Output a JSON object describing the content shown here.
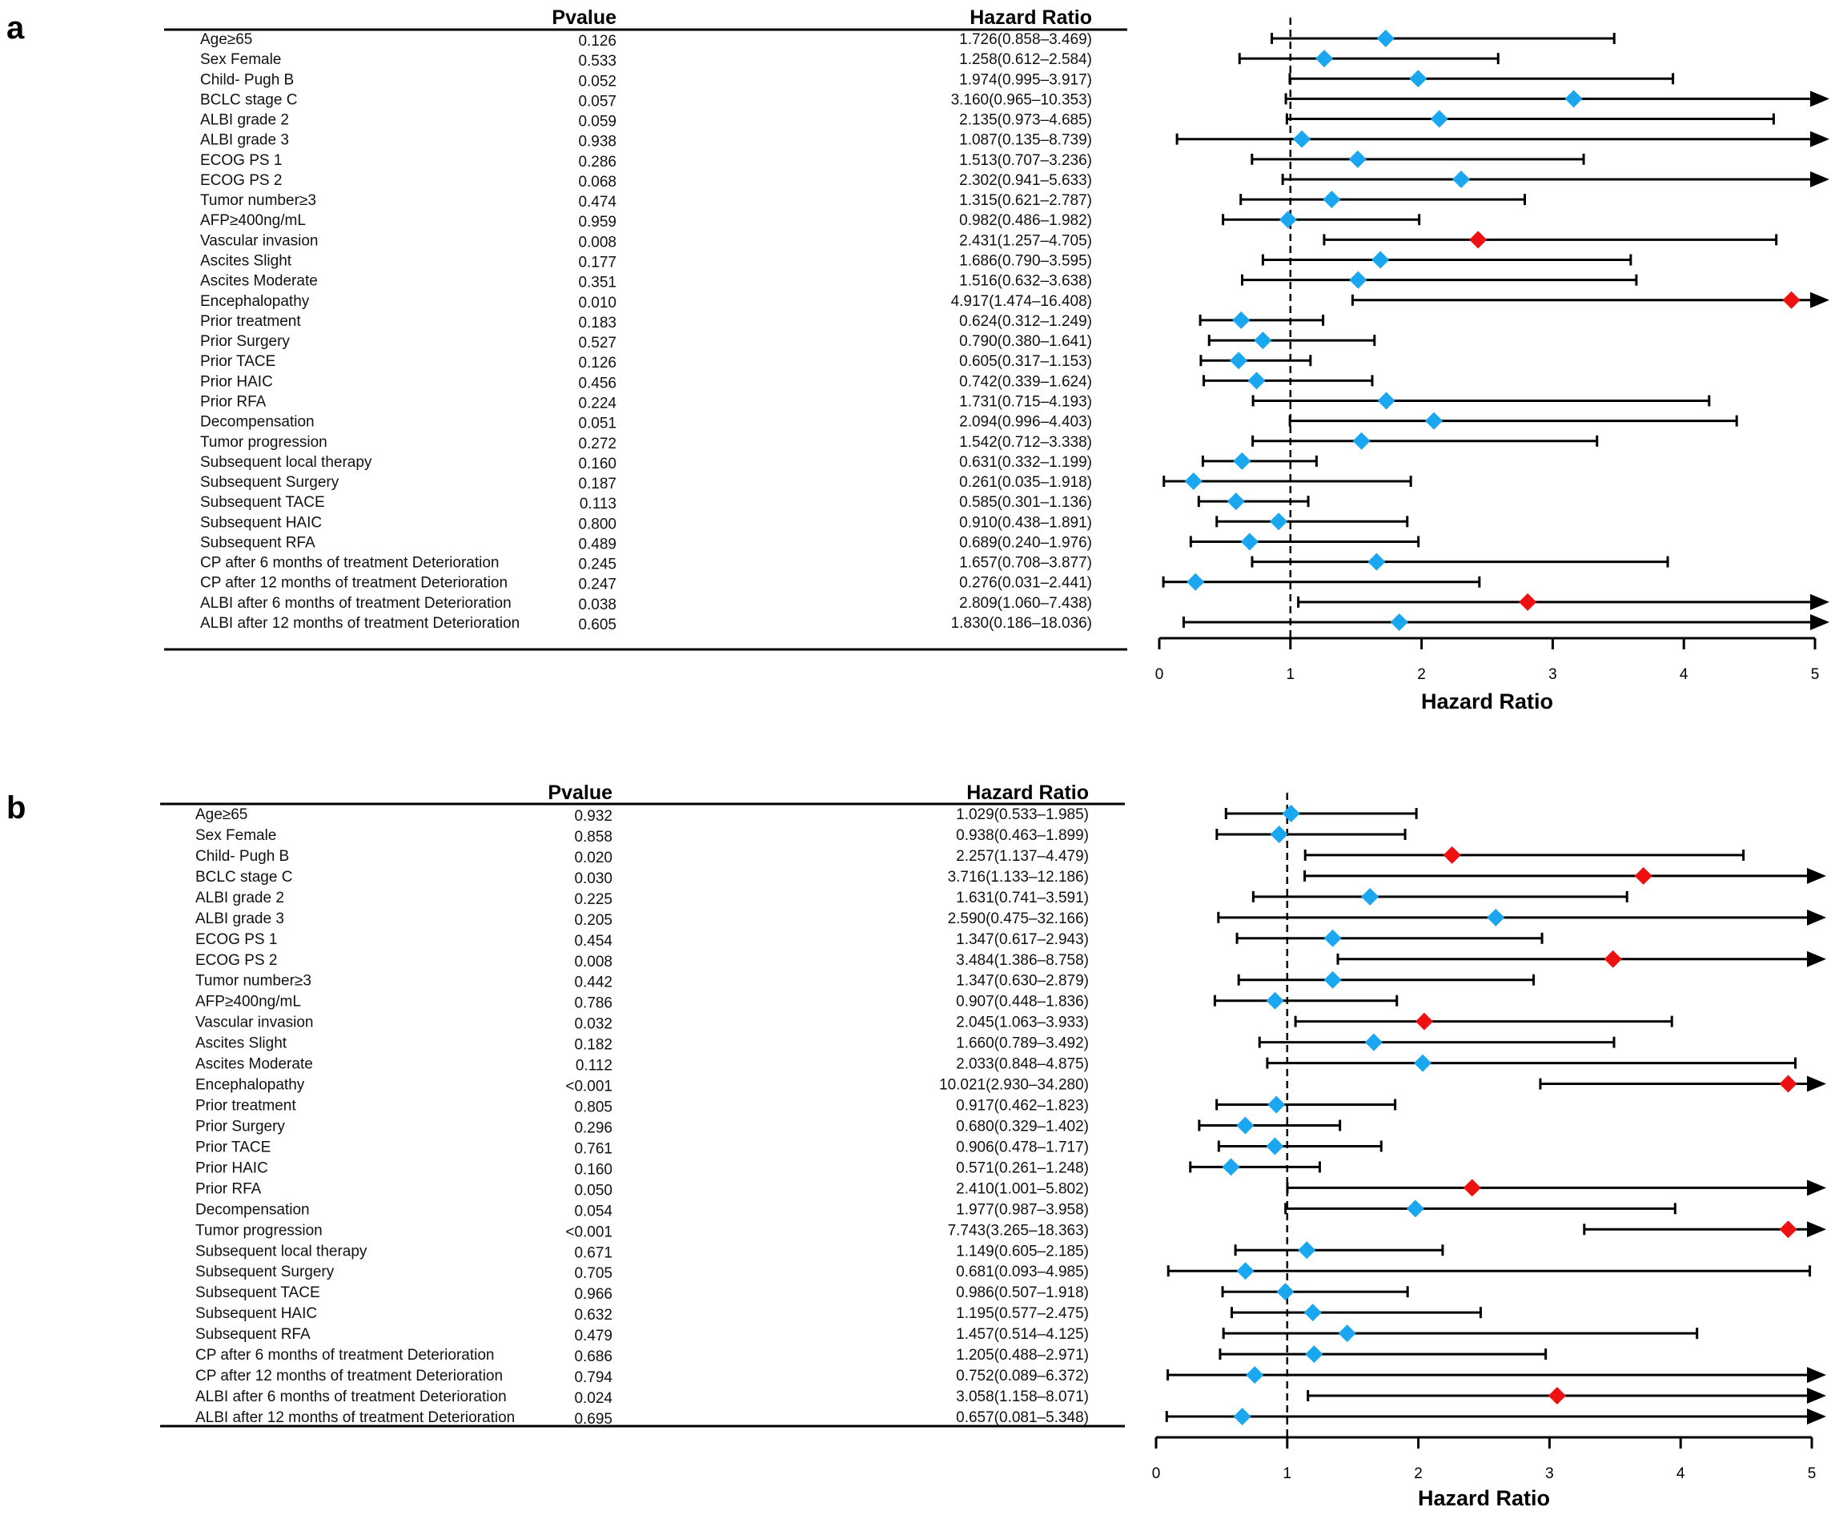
{
  "colors": {
    "nonsignificant": "#1aa7ef",
    "significant": "#ee1111",
    "line": "#000000"
  },
  "chart_data": [
    {
      "type": "forest",
      "panel_label": "a",
      "headers": {
        "pvalue": "Pvalue",
        "hazard_ratio": "Hazard Ratio"
      },
      "xlabel": "Hazard Ratio",
      "xlim": [
        0,
        5
      ],
      "xticks": [
        "0",
        "1",
        "2",
        "3",
        "4",
        "5"
      ],
      "reference_line": 1,
      "rows": [
        {
          "label": "Age≥65",
          "p": "0.126",
          "hr_text": "1.726(0.858–3.469)",
          "hr": 1.726,
          "lo": 0.858,
          "hi": 3.469
        },
        {
          "label": "Sex Female",
          "p": "0.533",
          "hr_text": "1.258(0.612–2.584)",
          "hr": 1.258,
          "lo": 0.612,
          "hi": 2.584
        },
        {
          "label": "Child- Pugh B",
          "p": "0.052",
          "hr_text": "1.974(0.995–3.917)",
          "hr": 1.974,
          "lo": 0.995,
          "hi": 3.917
        },
        {
          "label": "BCLC stage C",
          "p": "0.057",
          "hr_text": "3.160(0.965–10.353)",
          "hr": 3.16,
          "lo": 0.965,
          "hi": 10.353
        },
        {
          "label": "ALBI grade 2",
          "p": "0.059",
          "hr_text": "2.135(0.973–4.685)",
          "hr": 2.135,
          "lo": 0.973,
          "hi": 4.685
        },
        {
          "label": "ALBI grade 3",
          "p": "0.938",
          "hr_text": "1.087(0.135–8.739)",
          "hr": 1.087,
          "lo": 0.135,
          "hi": 8.739
        },
        {
          "label": "ECOG PS 1",
          "p": "0.286",
          "hr_text": "1.513(0.707–3.236)",
          "hr": 1.513,
          "lo": 0.707,
          "hi": 3.236
        },
        {
          "label": "ECOG PS 2",
          "p": "0.068",
          "hr_text": "2.302(0.941–5.633)",
          "hr": 2.302,
          "lo": 0.941,
          "hi": 5.633
        },
        {
          "label": "Tumor number≥3",
          "p": "0.474",
          "hr_text": "1.315(0.621–2.787)",
          "hr": 1.315,
          "lo": 0.621,
          "hi": 2.787
        },
        {
          "label": "AFP≥400ng/mL",
          "p": "0.959",
          "hr_text": "0.982(0.486–1.982)",
          "hr": 0.982,
          "lo": 0.486,
          "hi": 1.982
        },
        {
          "label": "Vascular invasion",
          "p": "0.008",
          "hr_text": "2.431(1.257–4.705)",
          "hr": 2.431,
          "lo": 1.257,
          "hi": 4.705
        },
        {
          "label": "Ascites Slight",
          "p": "0.177",
          "hr_text": "1.686(0.790–3.595)",
          "hr": 1.686,
          "lo": 0.79,
          "hi": 3.595
        },
        {
          "label": "Ascites Moderate",
          "p": "0.351",
          "hr_text": "1.516(0.632–3.638)",
          "hr": 1.516,
          "lo": 0.632,
          "hi": 3.638
        },
        {
          "label": "Encephalopathy",
          "p": "0.010",
          "hr_text": "4.917(1.474–16.408)",
          "hr": 4.917,
          "lo": 1.474,
          "hi": 16.408
        },
        {
          "label": "Prior treatment",
          "p": "0.183",
          "hr_text": "0.624(0.312–1.249)",
          "hr": 0.624,
          "lo": 0.312,
          "hi": 1.249
        },
        {
          "label": "Prior Surgery",
          "p": "0.527",
          "hr_text": "0.790(0.380–1.641)",
          "hr": 0.79,
          "lo": 0.38,
          "hi": 1.641
        },
        {
          "label": "Prior TACE",
          "p": "0.126",
          "hr_text": "0.605(0.317–1.153)",
          "hr": 0.605,
          "lo": 0.317,
          "hi": 1.153
        },
        {
          "label": "Prior HAIC",
          "p": "0.456",
          "hr_text": "0.742(0.339–1.624)",
          "hr": 0.742,
          "lo": 0.339,
          "hi": 1.624
        },
        {
          "label": "Prior RFA",
          "p": "0.224",
          "hr_text": "1.731(0.715–4.193)",
          "hr": 1.731,
          "lo": 0.715,
          "hi": 4.193
        },
        {
          "label": "Decompensation",
          "p": "0.051",
          "hr_text": "2.094(0.996–4.403)",
          "hr": 2.094,
          "lo": 0.996,
          "hi": 4.403
        },
        {
          "label": "Tumor progression",
          "p": "0.272",
          "hr_text": "1.542(0.712–3.338)",
          "hr": 1.542,
          "lo": 0.712,
          "hi": 3.338
        },
        {
          "label": "Subsequent local therapy",
          "p": "0.160",
          "hr_text": "0.631(0.332–1.199)",
          "hr": 0.631,
          "lo": 0.332,
          "hi": 1.199
        },
        {
          "label": "Subsequent Surgery",
          "p": "0.187",
          "hr_text": "0.261(0.035–1.918)",
          "hr": 0.261,
          "lo": 0.035,
          "hi": 1.918
        },
        {
          "label": "Subsequent TACE",
          "p": "0.113",
          "hr_text": "0.585(0.301–1.136)",
          "hr": 0.585,
          "lo": 0.301,
          "hi": 1.136
        },
        {
          "label": "Subsequent HAIC",
          "p": "0.800",
          "hr_text": "0.910(0.438–1.891)",
          "hr": 0.91,
          "lo": 0.438,
          "hi": 1.891
        },
        {
          "label": "Subsequent RFA",
          "p": "0.489",
          "hr_text": "0.689(0.240–1.976)",
          "hr": 0.689,
          "lo": 0.24,
          "hi": 1.976
        },
        {
          "label": "CP after 6 months of treatment Deterioration",
          "p": "0.245",
          "hr_text": "1.657(0.708–3.877)",
          "hr": 1.657,
          "lo": 0.708,
          "hi": 3.877
        },
        {
          "label": "CP after 12 months of treatment Deterioration",
          "p": "0.247",
          "hr_text": "0.276(0.031–2.441)",
          "hr": 0.276,
          "lo": 0.031,
          "hi": 2.441
        },
        {
          "label": "ALBI after 6 months of treatment Deterioration",
          "p": "0.038",
          "hr_text": "2.809(1.060–7.438)",
          "hr": 2.809,
          "lo": 1.06,
          "hi": 7.438
        },
        {
          "label": "ALBI after 12 months of treatment Deterioration",
          "p": "0.605",
          "hr_text": "1.830(0.186–18.036)",
          "hr": 1.83,
          "lo": 0.186,
          "hi": 18.036
        }
      ]
    },
    {
      "type": "forest",
      "panel_label": "b",
      "headers": {
        "pvalue": "Pvalue",
        "hazard_ratio": "Hazard Ratio"
      },
      "xlabel": "Hazard Ratio",
      "xlim": [
        0,
        5
      ],
      "xticks": [
        "0",
        "1",
        "2",
        "3",
        "4",
        "5"
      ],
      "reference_line": 1,
      "rows": [
        {
          "label": "Age≥65",
          "p": "0.932",
          "hr_text": "1.029(0.533–1.985)",
          "hr": 1.029,
          "lo": 0.533,
          "hi": 1.985
        },
        {
          "label": "Sex Female",
          "p": "0.858",
          "hr_text": "0.938(0.463–1.899)",
          "hr": 0.938,
          "lo": 0.463,
          "hi": 1.899
        },
        {
          "label": "Child- Pugh B",
          "p": "0.020",
          "hr_text": "2.257(1.137–4.479)",
          "hr": 2.257,
          "lo": 1.137,
          "hi": 4.479
        },
        {
          "label": "BCLC stage C",
          "p": "0.030",
          "hr_text": "3.716(1.133–12.186)",
          "hr": 3.716,
          "lo": 1.133,
          "hi": 12.186
        },
        {
          "label": "ALBI grade 2",
          "p": "0.225",
          "hr_text": "1.631(0.741–3.591)",
          "hr": 1.631,
          "lo": 0.741,
          "hi": 3.591
        },
        {
          "label": "ALBI grade 3",
          "p": "0.205",
          "hr_text": "2.590(0.475–32.166)",
          "hr": 2.59,
          "lo": 0.475,
          "hi": 32.166
        },
        {
          "label": "ECOG PS 1",
          "p": "0.454",
          "hr_text": "1.347(0.617–2.943)",
          "hr": 1.347,
          "lo": 0.617,
          "hi": 2.943
        },
        {
          "label": "ECOG PS 2",
          "p": "0.008",
          "hr_text": "3.484(1.386–8.758)",
          "hr": 3.484,
          "lo": 1.386,
          "hi": 8.758
        },
        {
          "label": "Tumor number≥3",
          "p": "0.442",
          "hr_text": "1.347(0.630–2.879)",
          "hr": 1.347,
          "lo": 0.63,
          "hi": 2.879
        },
        {
          "label": "AFP≥400ng/mL",
          "p": "0.786",
          "hr_text": "0.907(0.448–1.836)",
          "hr": 0.907,
          "lo": 0.448,
          "hi": 1.836
        },
        {
          "label": "Vascular invasion",
          "p": "0.032",
          "hr_text": "2.045(1.063–3.933)",
          "hr": 2.045,
          "lo": 1.063,
          "hi": 3.933
        },
        {
          "label": "Ascites Slight",
          "p": "0.182",
          "hr_text": "1.660(0.789–3.492)",
          "hr": 1.66,
          "lo": 0.789,
          "hi": 3.492
        },
        {
          "label": "Ascites Moderate",
          "p": "0.112",
          "hr_text": "2.033(0.848–4.875)",
          "hr": 2.033,
          "lo": 0.848,
          "hi": 4.875
        },
        {
          "label": "Encephalopathy",
          "p": "<0.001",
          "hr_text": "10.021(2.930–34.280)",
          "hr": 10.021,
          "lo": 2.93,
          "hi": 34.28
        },
        {
          "label": "Prior treatment",
          "p": "0.805",
          "hr_text": "0.917(0.462–1.823)",
          "hr": 0.917,
          "lo": 0.462,
          "hi": 1.823
        },
        {
          "label": "Prior Surgery",
          "p": "0.296",
          "hr_text": "0.680(0.329–1.402)",
          "hr": 0.68,
          "lo": 0.329,
          "hi": 1.402
        },
        {
          "label": "Prior TACE",
          "p": "0.761",
          "hr_text": "0.906(0.478–1.717)",
          "hr": 0.906,
          "lo": 0.478,
          "hi": 1.717
        },
        {
          "label": "Prior HAIC",
          "p": "0.160",
          "hr_text": "0.571(0.261–1.248)",
          "hr": 0.571,
          "lo": 0.261,
          "hi": 1.248
        },
        {
          "label": "Prior RFA",
          "p": "0.050",
          "hr_text": "2.410(1.001–5.802)",
          "hr": 2.41,
          "lo": 1.001,
          "hi": 5.802
        },
        {
          "label": "Decompensation",
          "p": "0.054",
          "hr_text": "1.977(0.987–3.958)",
          "hr": 1.977,
          "lo": 0.987,
          "hi": 3.958
        },
        {
          "label": "Tumor progression",
          "p": "<0.001",
          "hr_text": "7.743(3.265–18.363)",
          "hr": 7.743,
          "lo": 3.265,
          "hi": 18.363
        },
        {
          "label": "Subsequent local therapy",
          "p": "0.671",
          "hr_text": "1.149(0.605–2.185)",
          "hr": 1.149,
          "lo": 0.605,
          "hi": 2.185
        },
        {
          "label": "Subsequent Surgery",
          "p": "0.705",
          "hr_text": "0.681(0.093–4.985)",
          "hr": 0.681,
          "lo": 0.093,
          "hi": 4.985
        },
        {
          "label": "Subsequent TACE",
          "p": "0.966",
          "hr_text": "0.986(0.507–1.918)",
          "hr": 0.986,
          "lo": 0.507,
          "hi": 1.918
        },
        {
          "label": "Subsequent HAIC",
          "p": "0.632",
          "hr_text": "1.195(0.577–2.475)",
          "hr": 1.195,
          "lo": 0.577,
          "hi": 2.475
        },
        {
          "label": "Subsequent RFA",
          "p": "0.479",
          "hr_text": "1.457(0.514–4.125)",
          "hr": 1.457,
          "lo": 0.514,
          "hi": 4.125
        },
        {
          "label": "CP after 6 months of treatment Deterioration",
          "p": "0.686",
          "hr_text": "1.205(0.488–2.971)",
          "hr": 1.205,
          "lo": 0.488,
          "hi": 2.971
        },
        {
          "label": "CP after 12 months of treatment Deterioration",
          "p": "0.794",
          "hr_text": "0.752(0.089–6.372)",
          "hr": 0.752,
          "lo": 0.089,
          "hi": 6.372
        },
        {
          "label": "ALBI after 6 months of treatment Deterioration",
          "p": "0.024",
          "hr_text": "3.058(1.158–8.071)",
          "hr": 3.058,
          "lo": 1.158,
          "hi": 8.071
        },
        {
          "label": "ALBI after 12 months of treatment Deterioration",
          "p": "0.695",
          "hr_text": "0.657(0.081–5.348)",
          "hr": 0.657,
          "lo": 0.081,
          "hi": 5.348
        }
      ]
    }
  ]
}
